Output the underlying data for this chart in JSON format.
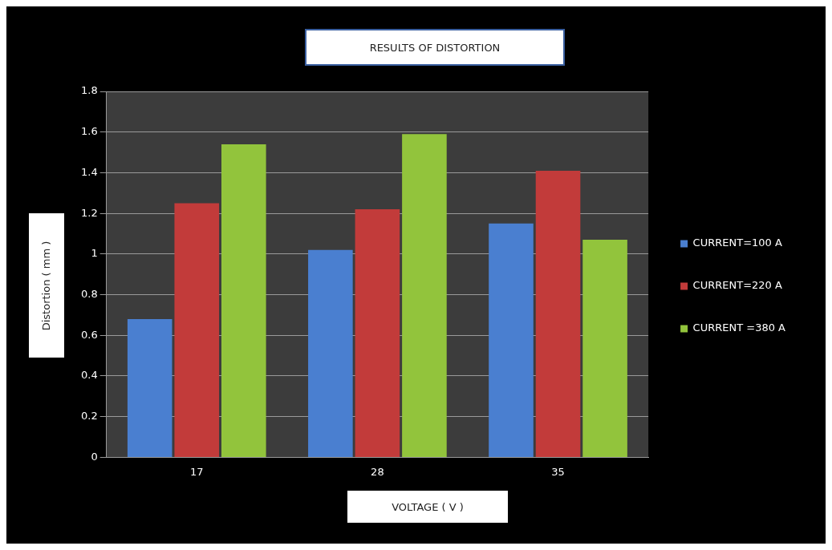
{
  "chart_data": {
    "type": "bar",
    "title": "RESULTS OF DISTORTION",
    "xlabel": "VOLTAGE ( V )",
    "ylabel": "Distortion  ( mm )",
    "categories": [
      "17",
      "28",
      "35"
    ],
    "series": [
      {
        "name": "CURRENT=100 A",
        "color": "#4a7fd0",
        "values": [
          0.68,
          1.02,
          1.15
        ]
      },
      {
        "name": "CURRENT=220 A",
        "color": "#c23b3a",
        "values": [
          1.25,
          1.22,
          1.41
        ]
      },
      {
        "name": "CURRENT =380 A",
        "color": "#92c43c",
        "values": [
          1.54,
          1.59,
          1.07
        ]
      }
    ],
    "ylim": [
      0,
      1.8
    ],
    "yticks": [
      0,
      0.2,
      0.4,
      0.6,
      0.8,
      1,
      1.2,
      1.4,
      1.6,
      1.8
    ],
    "grid": "y",
    "legend": "right"
  }
}
